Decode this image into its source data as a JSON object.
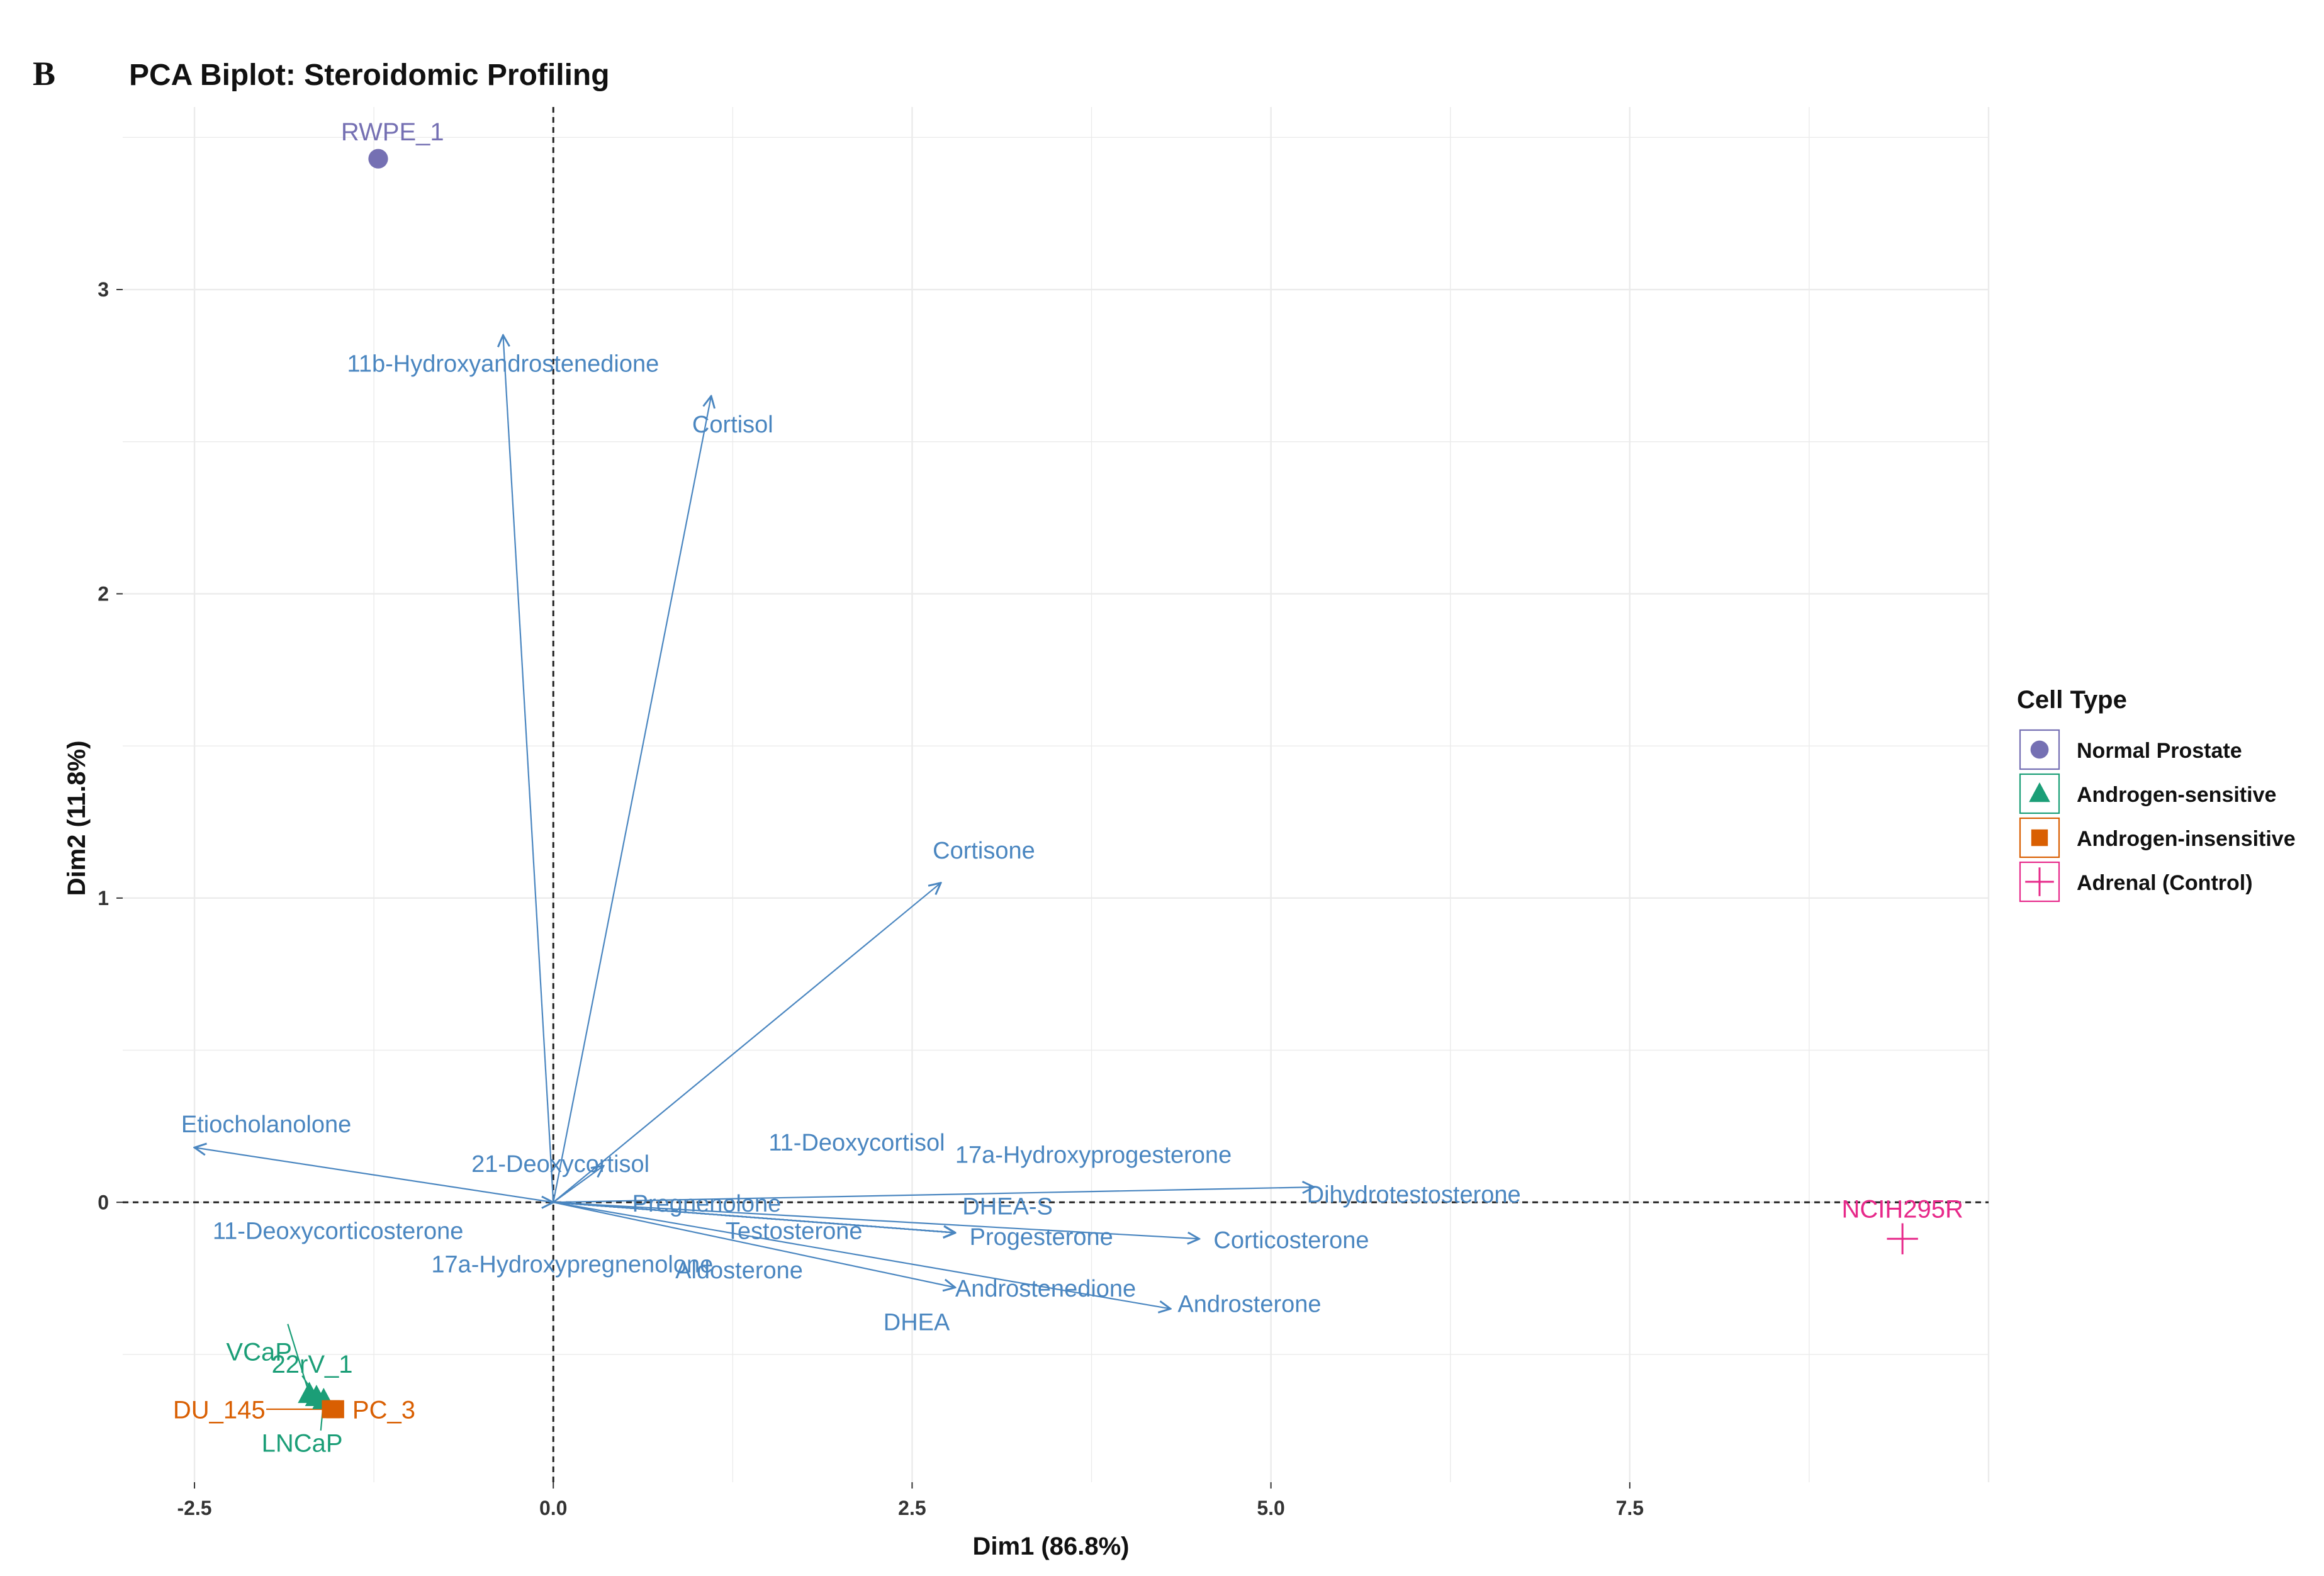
{
  "panel_letter": "B",
  "colors": {
    "variable": "#4a86c0",
    "normal_prostate": "#7570b3",
    "androgen_sensitive": "#1b9e77",
    "androgen_insensitive": "#d95f02",
    "adrenal_control": "#e7298a"
  },
  "chart_data": {
    "type": "scatter",
    "title": "PCA Biplot: Steroidomic Profiling",
    "xlabel": "Dim1 (86.8%)",
    "ylabel": "Dim2 (11.8%)",
    "xlim": [
      -3.0,
      10.0
    ],
    "ylim": [
      -0.92,
      3.6
    ],
    "x_ticks": [
      "-2.5",
      "0.0",
      "2.5",
      "5.0",
      "7.5"
    ],
    "y_ticks": [
      "0",
      "1",
      "2",
      "3"
    ],
    "grid": true,
    "reference_lines": "dashed at x=0 and y=0",
    "legend": {
      "title": "Cell Type",
      "position": "right",
      "entries": [
        "Normal Prostate",
        "Androgen-sensitive",
        "Androgen-insensitive",
        "Adrenal (Control)"
      ]
    },
    "variables": [
      {
        "name": "11b-Hydroxyandrostenedione",
        "x": -0.35,
        "y": 2.85
      },
      {
        "name": "Cortisol",
        "x": 1.1,
        "y": 2.65
      },
      {
        "name": "Cortisone",
        "x": 2.7,
        "y": 1.05
      },
      {
        "name": "Etiocholanolone",
        "x": -2.5,
        "y": 0.18
      },
      {
        "name": "21-Deoxycortisol",
        "x": 0.35,
        "y": 0.12
      },
      {
        "name": "11-Deoxycorticosterone",
        "x": 0.0,
        "y": 0.0
      },
      {
        "name": "17a-Hydroxypregnenolone",
        "x": 2.8,
        "y": -0.1
      },
      {
        "name": "Pregnenolone",
        "x": 2.8,
        "y": -0.1
      },
      {
        "name": "11-Deoxycortisol",
        "x": 2.8,
        "y": -0.1
      },
      {
        "name": "17a-Hydroxyprogesterone",
        "x": 2.8,
        "y": -0.1
      },
      {
        "name": "DHEA-S",
        "x": 2.8,
        "y": -0.1
      },
      {
        "name": "Testosterone",
        "x": 2.8,
        "y": -0.1
      },
      {
        "name": "Progesterone",
        "x": 2.8,
        "y": -0.1
      },
      {
        "name": "Aldosterone",
        "x": 2.8,
        "y": -0.1
      },
      {
        "name": "Androstenedione",
        "x": 2.8,
        "y": -0.28
      },
      {
        "name": "DHEA",
        "x": 2.8,
        "y": -0.1
      },
      {
        "name": "Dihydrotestosterone",
        "x": 5.3,
        "y": 0.05
      },
      {
        "name": "Corticosterone",
        "x": 4.5,
        "y": -0.12
      },
      {
        "name": "Androsterone",
        "x": 4.3,
        "y": -0.35
      }
    ],
    "individuals": [
      {
        "name": "RWPE_1",
        "group": "Normal Prostate",
        "x": -1.22,
        "y": 3.43
      },
      {
        "name": "VCaP",
        "group": "Androgen-sensitive",
        "x": -1.7,
        "y": -0.63
      },
      {
        "name": "22rV_1",
        "group": "Androgen-sensitive",
        "x": -1.65,
        "y": -0.64
      },
      {
        "name": "LNCaP",
        "group": "Androgen-sensitive",
        "x": -1.6,
        "y": -0.65
      },
      {
        "name": "DU_145",
        "group": "Androgen-insensitive",
        "x": -1.55,
        "y": -0.68
      },
      {
        "name": "PC_3",
        "group": "Androgen-insensitive",
        "x": -1.52,
        "y": -0.68
      },
      {
        "name": "NCIH295R",
        "group": "Adrenal (Control)",
        "x": 9.4,
        "y": -0.12
      }
    ]
  }
}
